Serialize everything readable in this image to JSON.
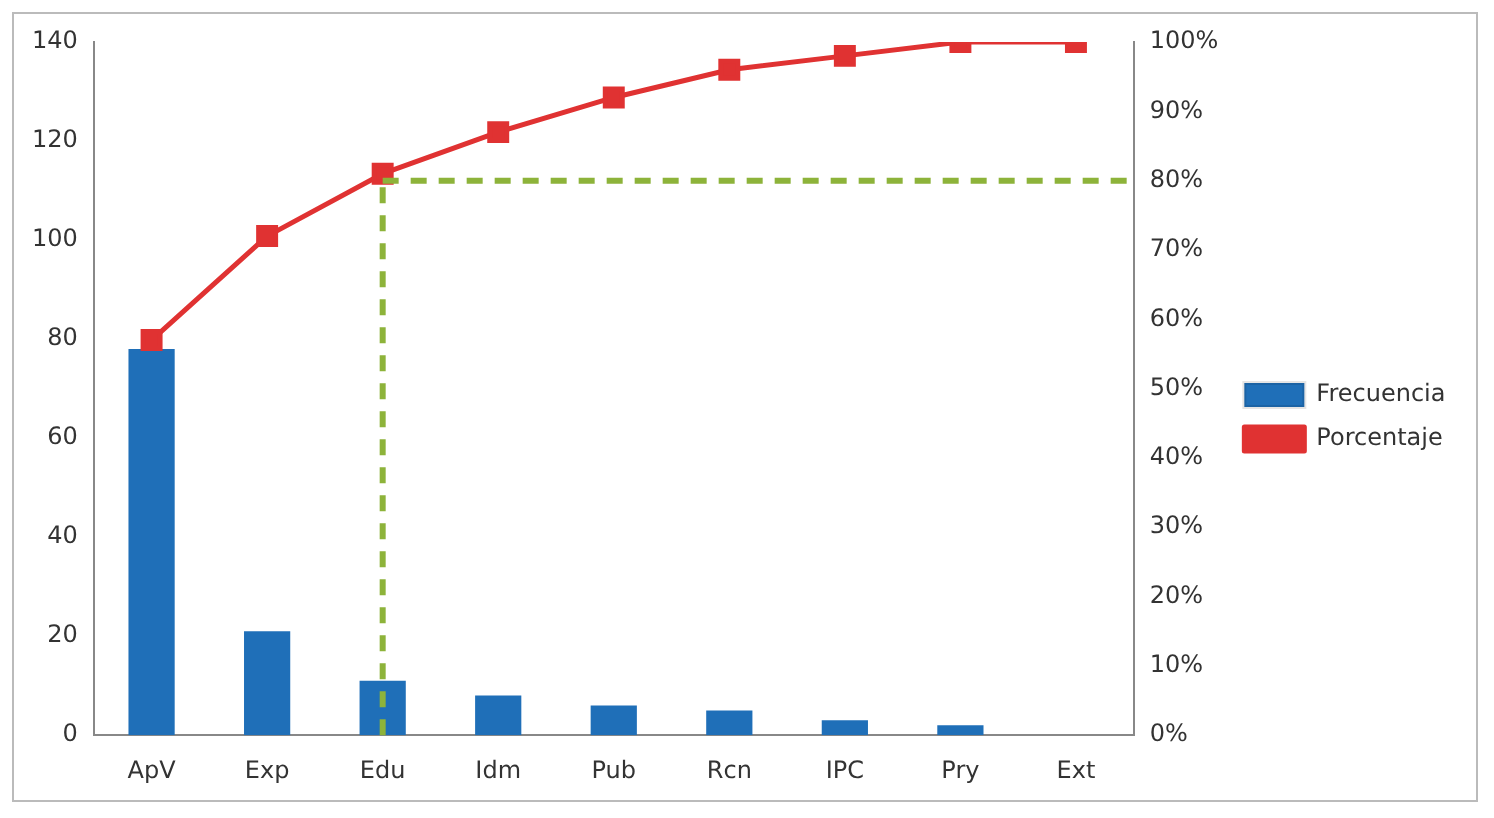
{
  "chart_data": {
    "type": "bar",
    "categories": [
      "ApV",
      "Exp",
      "Edu",
      "Idm",
      "Pub",
      "Rcn",
      "IPC",
      "Pry",
      "Ext"
    ],
    "series": [
      {
        "name": "Frecuencia",
        "type": "bar",
        "color": "#1f6fb8",
        "values": [
          78,
          21,
          11,
          8,
          6,
          5,
          3,
          2,
          0
        ]
      },
      {
        "name": "Porcentaje",
        "type": "line",
        "axis": "y2",
        "color": "#e03232",
        "marker": "square",
        "values": [
          57,
          72,
          81,
          87,
          92,
          96,
          98,
          100,
          100
        ]
      }
    ],
    "ylim": [
      0,
      140
    ],
    "yticks": [
      0,
      20,
      40,
      60,
      80,
      100,
      120,
      140
    ],
    "y2lim": [
      0,
      100
    ],
    "y2ticks": [
      {
        "value": 0,
        "label": "0%"
      },
      {
        "value": 10,
        "label": "10%"
      },
      {
        "value": 20,
        "label": "20%"
      },
      {
        "value": 30,
        "label": "30%"
      },
      {
        "value": 40,
        "label": "40%"
      },
      {
        "value": 50,
        "label": "50%"
      },
      {
        "value": 60,
        "label": "60%"
      },
      {
        "value": 70,
        "label": "70%"
      },
      {
        "value": 80,
        "label": "80%"
      },
      {
        "value": 90,
        "label": "90%"
      },
      {
        "value": 100,
        "label": "100%"
      }
    ],
    "ref_lines": [
      {
        "axis": "x",
        "value": "Edu",
        "color": "#8db33a",
        "line_style": "dashed"
      },
      {
        "axis": "y2",
        "value": 80,
        "color": "#8db33a",
        "line_style": "dashed"
      }
    ],
    "grid": false,
    "legend": "right"
  }
}
